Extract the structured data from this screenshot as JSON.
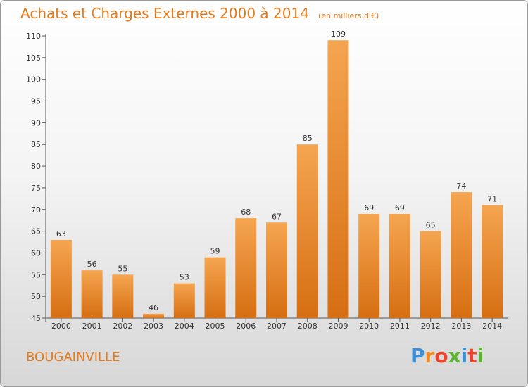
{
  "title": "Achats et Charges Externes 2000 à 2014",
  "subtitle": "(en milliers d'€)",
  "commune": "BOUGAINVILLE",
  "logo": {
    "text": "Proxiti",
    "colors": [
      "#3a8fd6",
      "#f08a1c",
      "#e8452c",
      "#5bb431",
      "#3a8fd6",
      "#e8452c",
      "#5bb431"
    ]
  },
  "colors": {
    "accent": "#e37a1c",
    "bar_top": "#f5a550",
    "bar_bottom": "#d66e12",
    "axis": "#555555"
  },
  "chart_data": {
    "type": "bar",
    "categories": [
      "2000",
      "2001",
      "2002",
      "2003",
      "2004",
      "2005",
      "2006",
      "2007",
      "2008",
      "2009",
      "2010",
      "2011",
      "2012",
      "2013",
      "2014"
    ],
    "values": [
      63,
      56,
      55,
      46,
      53,
      59,
      68,
      67,
      85,
      109,
      69,
      69,
      65,
      74,
      71
    ],
    "ylim": [
      45,
      110
    ],
    "yticks": [
      45,
      50,
      55,
      60,
      65,
      70,
      75,
      80,
      85,
      90,
      95,
      100,
      105,
      110
    ],
    "grid": false,
    "data_labels": true
  }
}
